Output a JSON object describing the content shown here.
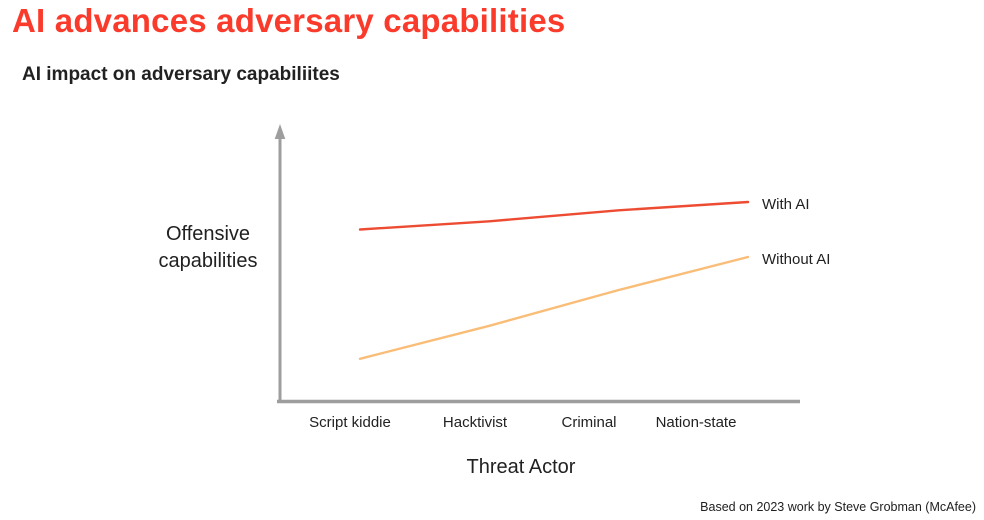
{
  "page": {
    "title": "AI advances adversary capabilities",
    "footer": "Based on 2023 work by Steve Grobman (McAfee)"
  },
  "colors": {
    "title_red": "#FA3B2C",
    "with_ai_line": "#ED4C33",
    "without_ai_line": "#FABD77",
    "axis_gray": "#9E9E9E",
    "text_dark": "#212121"
  },
  "chart_data": {
    "type": "line",
    "title": "AI impact on adversary capabiliites",
    "xlabel": "Threat Actor",
    "ylabel": "Offensive capabilities",
    "categories": [
      "Script kiddie",
      "Hacktivist",
      "Criminal",
      "Nation-state"
    ],
    "series": [
      {
        "name": "With AI",
        "color": "#ED4C33",
        "values": [
          0.62,
          0.65,
          0.69,
          0.72
        ]
      },
      {
        "name": "Without AI",
        "color": "#FABD77",
        "values": [
          0.15,
          0.27,
          0.4,
          0.52
        ]
      }
    ],
    "ylim": [
      0,
      1
    ],
    "y_tick_labels": [],
    "grid": false,
    "legend_position": "right of line ends"
  }
}
